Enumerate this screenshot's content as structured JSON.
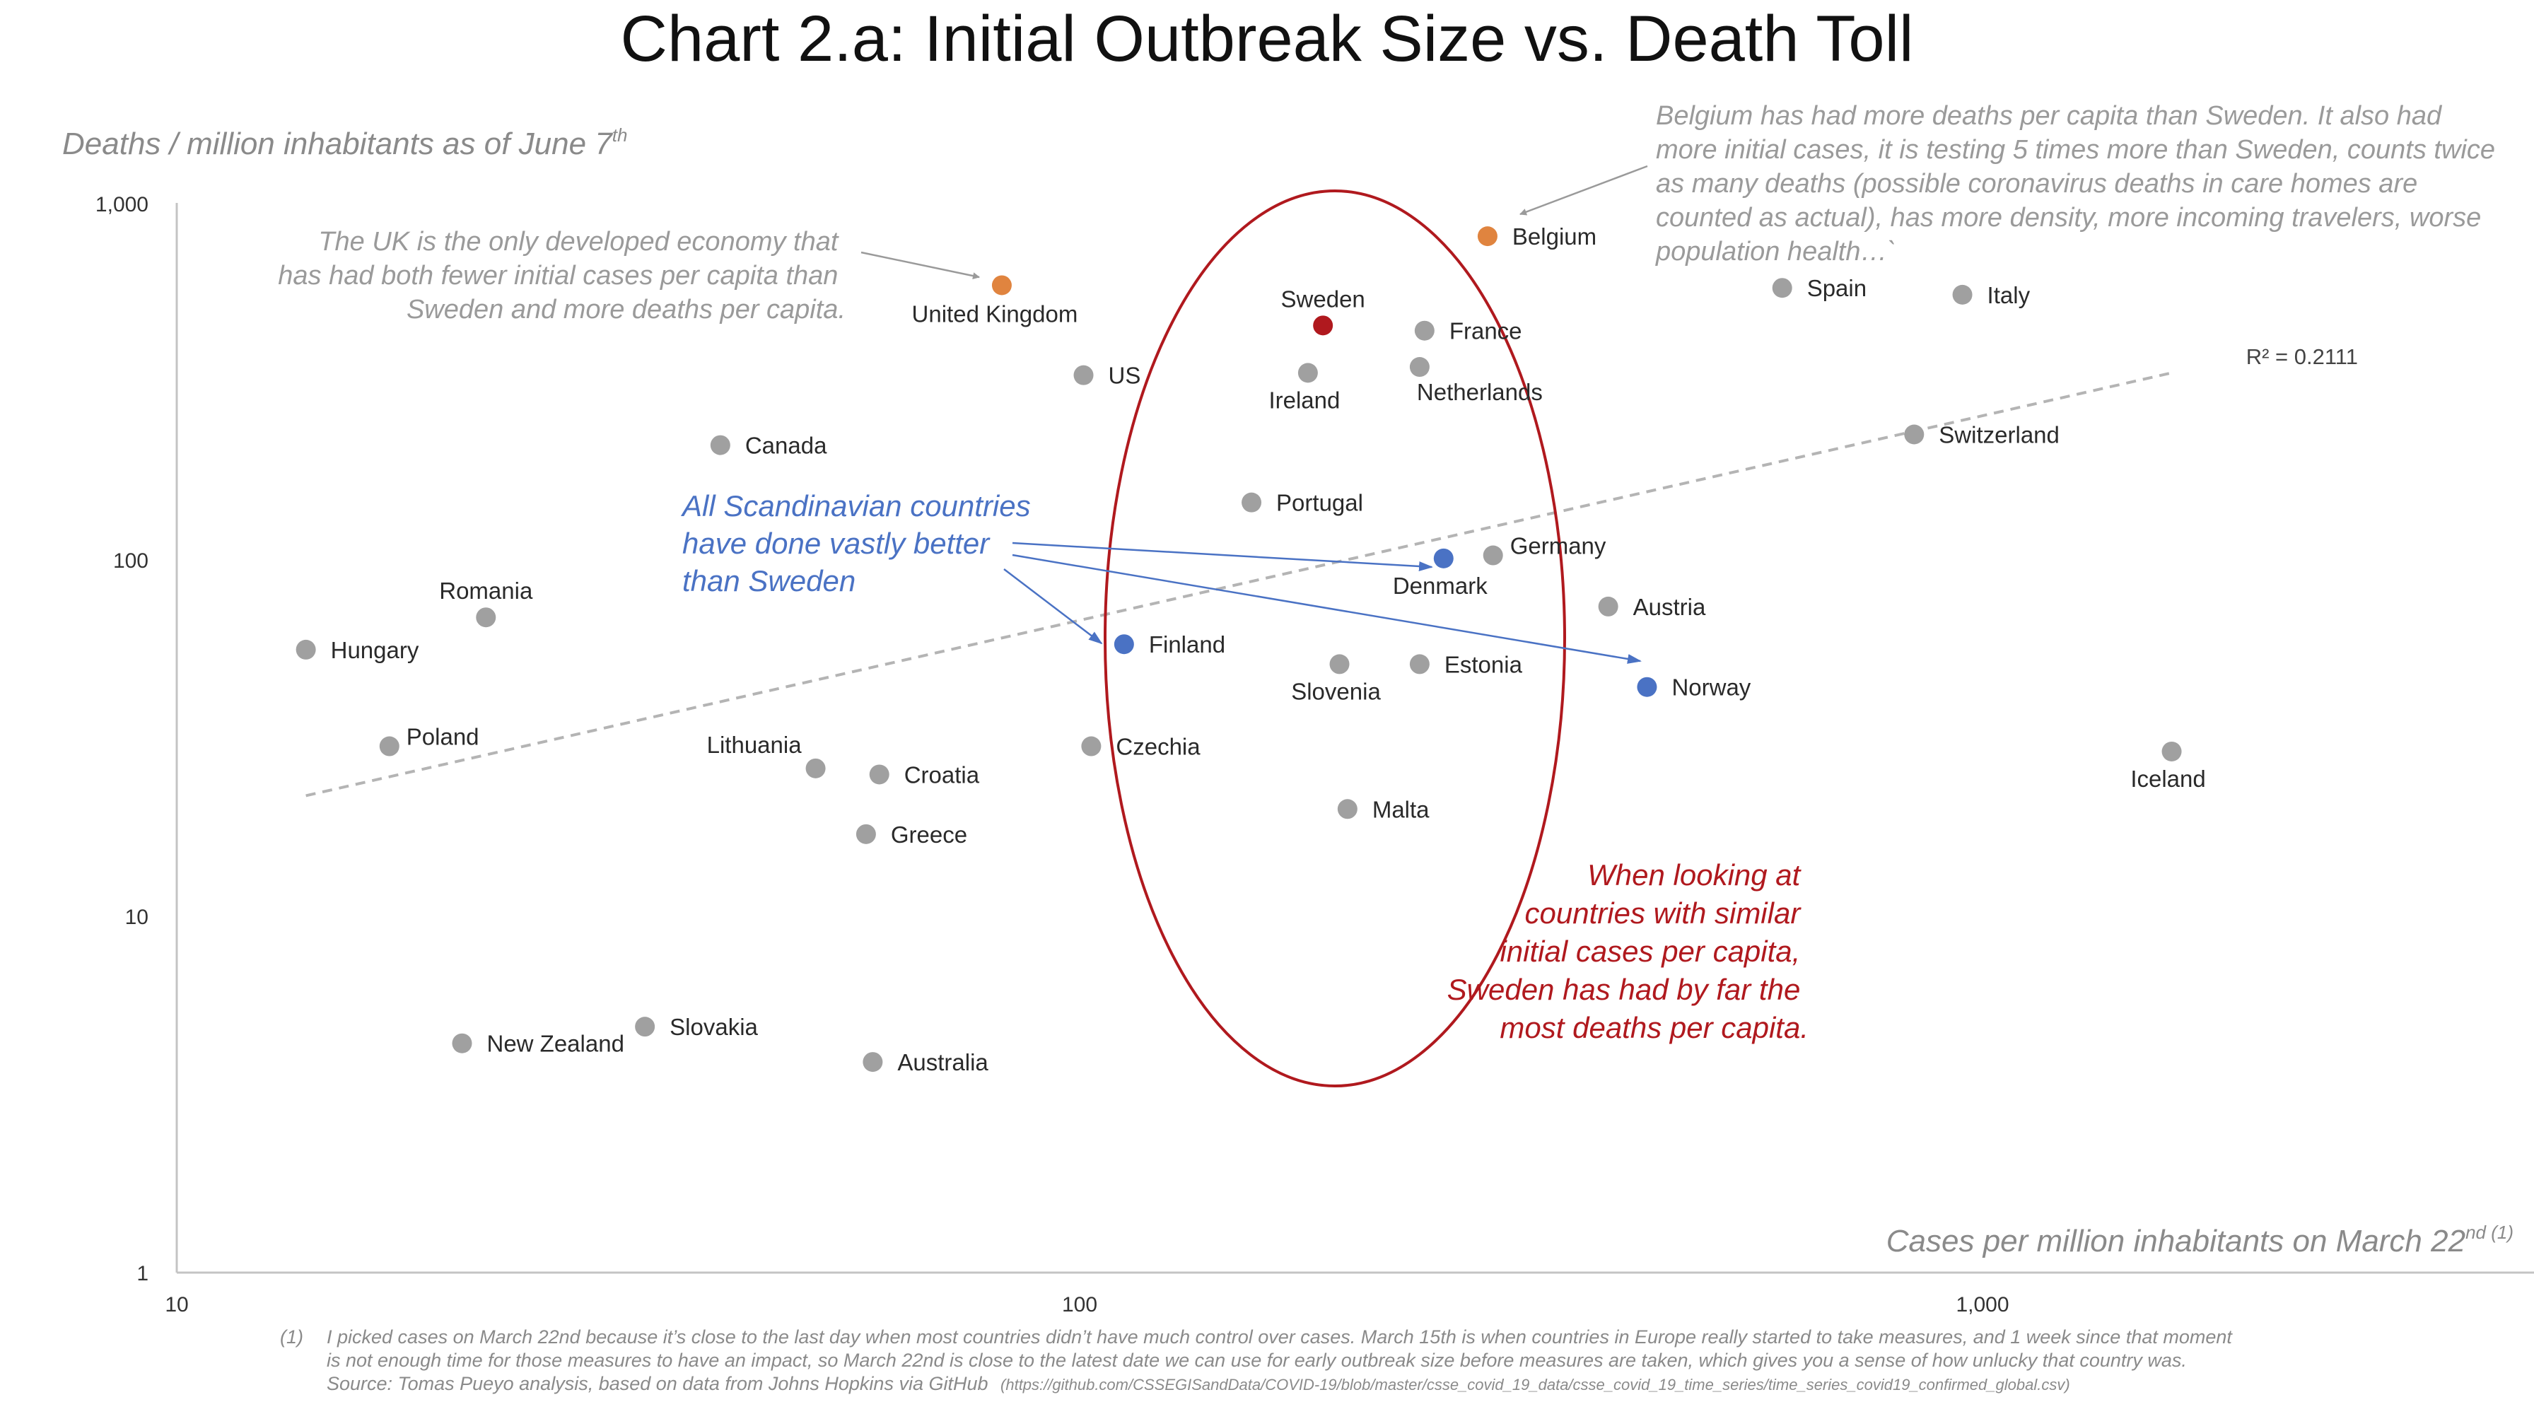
{
  "chart_data": {
    "type": "scatter",
    "title": "Chart 2.a: Initial Outbreak Size vs. Death Toll",
    "ylabel": "Deaths / million inhabitants as of June 7",
    "ylabel_sup": "th",
    "xlabel": "Cases per million inhabitants on March 22",
    "xlabel_sup": "nd (1)",
    "x_scale": "log",
    "y_scale": "log",
    "xlim": [
      10,
      5000
    ],
    "ylim": [
      1,
      1000
    ],
    "x_ticks": [
      {
        "value": 10,
        "label": "10"
      },
      {
        "value": 100,
        "label": "100"
      },
      {
        "value": 1000,
        "label": "1,000"
      }
    ],
    "y_ticks": [
      {
        "value": 1,
        "label": "1"
      },
      {
        "value": 10,
        "label": "10"
      },
      {
        "value": 100,
        "label": "100"
      },
      {
        "value": 1000,
        "label": "1,000"
      }
    ],
    "grid": false,
    "colors": {
      "default": "#a0a0a0",
      "sweden": "#b0191e",
      "higher_than_sweden": "#e0843f",
      "scandinavia": "#4a72c4",
      "ellipse": "#b0191e",
      "trend": "#b4b4b4",
      "arrow_gray": "#9a9a9a",
      "arrow_blue": "#4a72c4"
    },
    "points": [
      {
        "name": "Hungary",
        "x": 13.9,
        "y": 56,
        "color": "default",
        "label_pos": "right"
      },
      {
        "name": "Romania",
        "x": 22,
        "y": 69,
        "color": "default",
        "label_pos": "above"
      },
      {
        "name": "Poland",
        "x": 17.2,
        "y": 30,
        "color": "default",
        "label_pos": "right-up"
      },
      {
        "name": "New Zealand",
        "x": 20.7,
        "y": 4.4,
        "color": "default",
        "label_pos": "right"
      },
      {
        "name": "Slovakia",
        "x": 33,
        "y": 4.9,
        "color": "default",
        "label_pos": "right"
      },
      {
        "name": "Canada",
        "x": 40,
        "y": 210,
        "color": "default",
        "label_pos": "right"
      },
      {
        "name": "Lithuania",
        "x": 51,
        "y": 26,
        "color": "default",
        "label_pos": "above-left"
      },
      {
        "name": "Croatia",
        "x": 60,
        "y": 25,
        "color": "default",
        "label_pos": "right"
      },
      {
        "name": "Greece",
        "x": 58,
        "y": 17,
        "color": "default",
        "label_pos": "right"
      },
      {
        "name": "Australia",
        "x": 59,
        "y": 3.9,
        "color": "default",
        "label_pos": "right"
      },
      {
        "name": "United Kingdom",
        "x": 82,
        "y": 590,
        "color": "higher_than_sweden",
        "label_pos": "below-left"
      },
      {
        "name": "US",
        "x": 101,
        "y": 330,
        "color": "default",
        "label_pos": "right"
      },
      {
        "name": "Czechia",
        "x": 103,
        "y": 30,
        "color": "default",
        "label_pos": "right"
      },
      {
        "name": "Finland",
        "x": 112,
        "y": 58,
        "color": "scandinavia",
        "label_pos": "right"
      },
      {
        "name": "Portugal",
        "x": 155,
        "y": 145,
        "color": "default",
        "label_pos": "right"
      },
      {
        "name": "Ireland",
        "x": 179,
        "y": 335,
        "color": "default",
        "label_pos": "below"
      },
      {
        "name": "Sweden",
        "x": 186,
        "y": 455,
        "color": "sweden",
        "label_pos": "above"
      },
      {
        "name": "Slovenia",
        "x": 194,
        "y": 51,
        "color": "default",
        "label_pos": "below"
      },
      {
        "name": "Malta",
        "x": 198,
        "y": 20,
        "color": "default",
        "label_pos": "right"
      },
      {
        "name": "Netherlands",
        "x": 238,
        "y": 348,
        "color": "default",
        "label_pos": "below-right"
      },
      {
        "name": "Estonia",
        "x": 238,
        "y": 51,
        "color": "default",
        "label_pos": "right"
      },
      {
        "name": "France",
        "x": 241,
        "y": 440,
        "color": "default",
        "label_pos": "right"
      },
      {
        "name": "Denmark",
        "x": 253,
        "y": 101,
        "color": "scandinavia",
        "label_pos": "below"
      },
      {
        "name": "Germany",
        "x": 287,
        "y": 103,
        "color": "default",
        "label_pos": "right-up"
      },
      {
        "name": "Belgium",
        "x": 283,
        "y": 810,
        "color": "higher_than_sweden",
        "label_pos": "right"
      },
      {
        "name": "Austria",
        "x": 385,
        "y": 74,
        "color": "default",
        "label_pos": "right"
      },
      {
        "name": "Norway",
        "x": 425,
        "y": 44,
        "color": "scandinavia",
        "label_pos": "right"
      },
      {
        "name": "Spain",
        "x": 600,
        "y": 580,
        "color": "default",
        "label_pos": "right"
      },
      {
        "name": "Italy",
        "x": 950,
        "y": 555,
        "color": "default",
        "label_pos": "right"
      },
      {
        "name": "Switzerland",
        "x": 840,
        "y": 225,
        "color": "default",
        "label_pos": "right"
      },
      {
        "name": "Iceland",
        "x": 1620,
        "y": 29,
        "color": "default",
        "label_pos": "below"
      }
    ],
    "trendline": {
      "x": [
        13.9,
        1620
      ],
      "y": [
        21.8,
        335
      ],
      "style": "dashed",
      "r2_label": "R² = 0.2111"
    },
    "ellipse": {
      "center_x": 186,
      "center_y": 40,
      "note": "ellipse around countries with initial cases similar to Sweden"
    },
    "annotations": {
      "uk": [
        "The UK is the only developed economy that",
        "has had both fewer initial cases per capita than",
        "Sweden and more deaths per capita."
      ],
      "belgium": [
        "Belgium has had more deaths per capita than Sweden. It also had",
        "more initial cases, it is testing 5 times more than Sweden, counts twice",
        "as many deaths (possible coronavirus deaths in care homes are",
        "counted as actual), has more density, more incoming travelers, worse",
        "population health…`"
      ],
      "scandinavia": [
        "All Scandinavian countries",
        "have done vastly better",
        "than Sweden"
      ],
      "sweden_note": [
        "When looking at",
        "countries with similar",
        "initial cases per capita,",
        "Sweden has had by far the",
        "most deaths per capita."
      ]
    },
    "footnote": {
      "marker": "(1)",
      "line1": "I picked cases on March 22nd because it’s close to the last day when most countries didn’t have much control over cases. March 15th is when countries in Europe really started to take measures, and 1 week since that moment",
      "line2": "is not enough time for those measures to have an impact, so March 22nd is close to the latest date we can use for early outbreak size before measures are taken, which gives you a sense of how unlucky that country was.",
      "line3": "Source: Tomas Pueyo analysis, based on data from Johns Hopkins via GitHub",
      "line3_url": "(https://github.com/CSSEGISandData/COVID-19/blob/master/csse_covid_19_data/csse_covid_19_time_series/time_series_covid19_confirmed_global.csv)"
    }
  }
}
